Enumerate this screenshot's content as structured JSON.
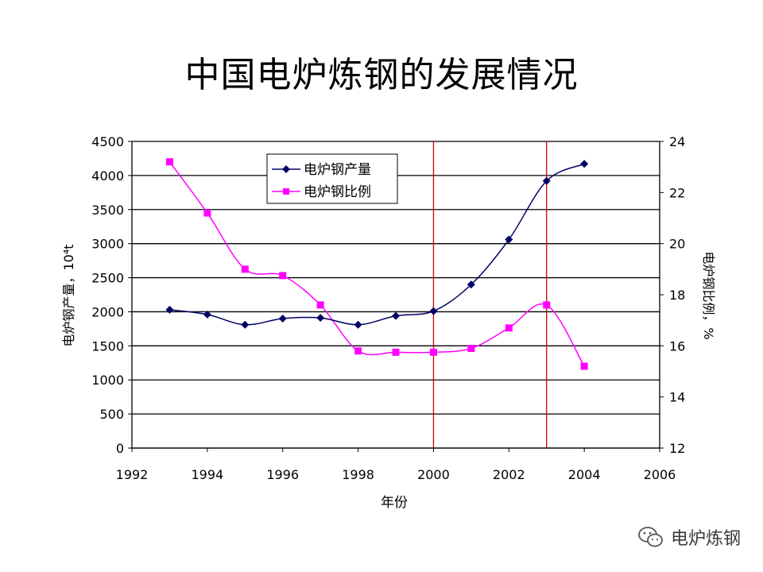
{
  "slide": {
    "title": "中国电炉炼钢的发展情况",
    "watermark": "电炉炼钢"
  },
  "colors": {
    "production": "#000066",
    "ratio": "#ff00ff",
    "markers": "#cc0000",
    "grid": "#000000"
  },
  "chart_data": {
    "type": "line",
    "title": "",
    "xlabel": "年份",
    "ylabel": "电炉钢产量，10⁴t",
    "y2label": "电炉钢比例，%",
    "xlim": [
      1992,
      2006
    ],
    "ylim": [
      0,
      4500
    ],
    "y2lim": [
      12,
      24
    ],
    "xticks": [
      1992,
      1994,
      1996,
      1998,
      2000,
      2002,
      2004,
      2006
    ],
    "yticks": [
      0,
      500,
      1000,
      1500,
      2000,
      2500,
      3000,
      3500,
      4000,
      4500
    ],
    "y2ticks": [
      12,
      14,
      16,
      18,
      20,
      22,
      24
    ],
    "grid": "horizontal",
    "legend_position": "top-left",
    "vertical_markers": [
      2000,
      2003
    ],
    "series": [
      {
        "name": "电炉钢产量",
        "axis": "left",
        "marker": "diamond",
        "x": [
          1993,
          1994,
          1995,
          1996,
          1997,
          1998,
          1999,
          2000,
          2001,
          2002,
          2003,
          2004
        ],
        "values": [
          2030,
          1960,
          1810,
          1900,
          1910,
          1810,
          1940,
          2010,
          2400,
          3060,
          3920,
          4170
        ]
      },
      {
        "name": "电炉钢比例",
        "axis": "right",
        "marker": "square",
        "x": [
          1993,
          1994,
          1995,
          1996,
          1997,
          1998,
          1999,
          2000,
          2001,
          2002,
          2003,
          2004
        ],
        "values": [
          23.2,
          21.2,
          19.0,
          18.75,
          17.6,
          15.8,
          15.75,
          15.75,
          15.9,
          16.7,
          17.6,
          15.2
        ]
      }
    ]
  }
}
